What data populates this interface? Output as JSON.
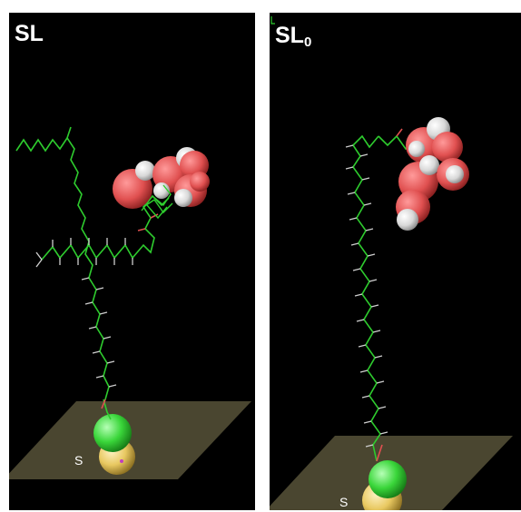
{
  "figure": {
    "panels": [
      {
        "id": "left",
        "title": "SL",
        "title_subscript": "",
        "substrate_atom_label": "S"
      },
      {
        "id": "right",
        "title": "SL",
        "title_subscript": "0",
        "substrate_atom_label": "S"
      }
    ],
    "colors": {
      "background": "#000000",
      "carbon_chain": "#2ecc2e",
      "hydrogen": "#d8d8d8",
      "oxygen": "#e05050",
      "substrate_plane": "#4a4630",
      "sulfur": "#e8c860",
      "green_atom": "#3ad63a"
    }
  }
}
